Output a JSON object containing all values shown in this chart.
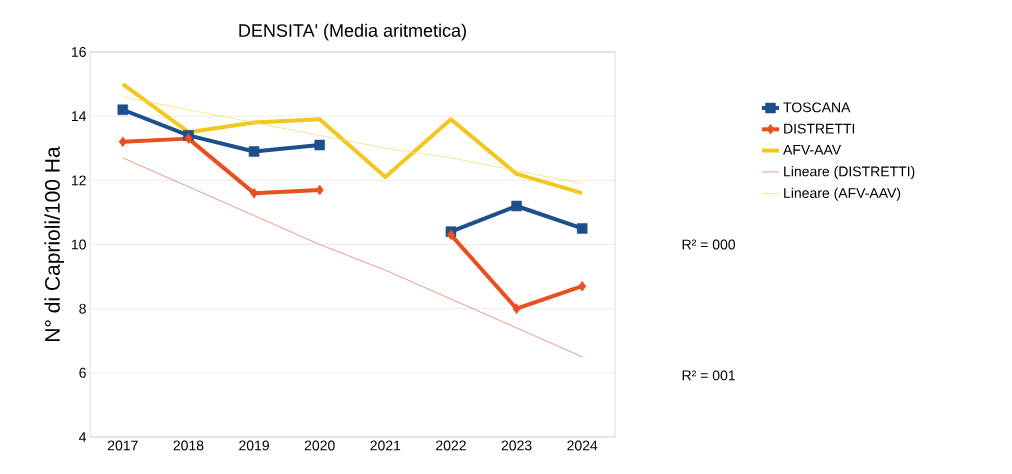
{
  "chart_data": {
    "type": "line",
    "title": "DENSITA' (Media aritmetica)",
    "ylabel": "N° di Caprioli/100 Ha",
    "categories": [
      "2017",
      "2018",
      "2019",
      "2020",
      "2021",
      "2022",
      "2023",
      "2024"
    ],
    "series": [
      {
        "name": "TOSCANA",
        "color": "#1f4e8c",
        "marker": "square",
        "values": [
          14.2,
          13.4,
          12.9,
          13.1,
          null,
          10.4,
          11.2,
          10.5
        ]
      },
      {
        "name": "DISTRETTI",
        "color": "#e8501f",
        "marker": "diamond",
        "values": [
          13.2,
          13.3,
          11.6,
          11.7,
          null,
          10.3,
          8.0,
          8.7
        ]
      },
      {
        "name": "AFV-AAV",
        "color": "#f2c81e",
        "marker": "none",
        "values": [
          15.0,
          13.5,
          13.8,
          13.9,
          12.1,
          13.9,
          12.2,
          11.6
        ]
      },
      {
        "name": "Lineare (DISTRETTI)",
        "color": "#e0846a",
        "marker": "none",
        "values": [
          12.7,
          11.8,
          10.9,
          10.0,
          9.2,
          8.3,
          7.4,
          6.5
        ]
      },
      {
        "name": "Lineare (AFV-AAV)",
        "color": "#f3df6e",
        "marker": "none",
        "values": [
          14.6,
          14.2,
          13.8,
          13.4,
          13.0,
          12.7,
          12.3,
          11.9
        ]
      }
    ],
    "ylim": [
      4,
      16
    ],
    "yticks": [
      4,
      6,
      8,
      10,
      12,
      14,
      16
    ],
    "grid": "y",
    "legend": "right",
    "annotations": [
      "R² = 000",
      "R² = 001"
    ]
  }
}
